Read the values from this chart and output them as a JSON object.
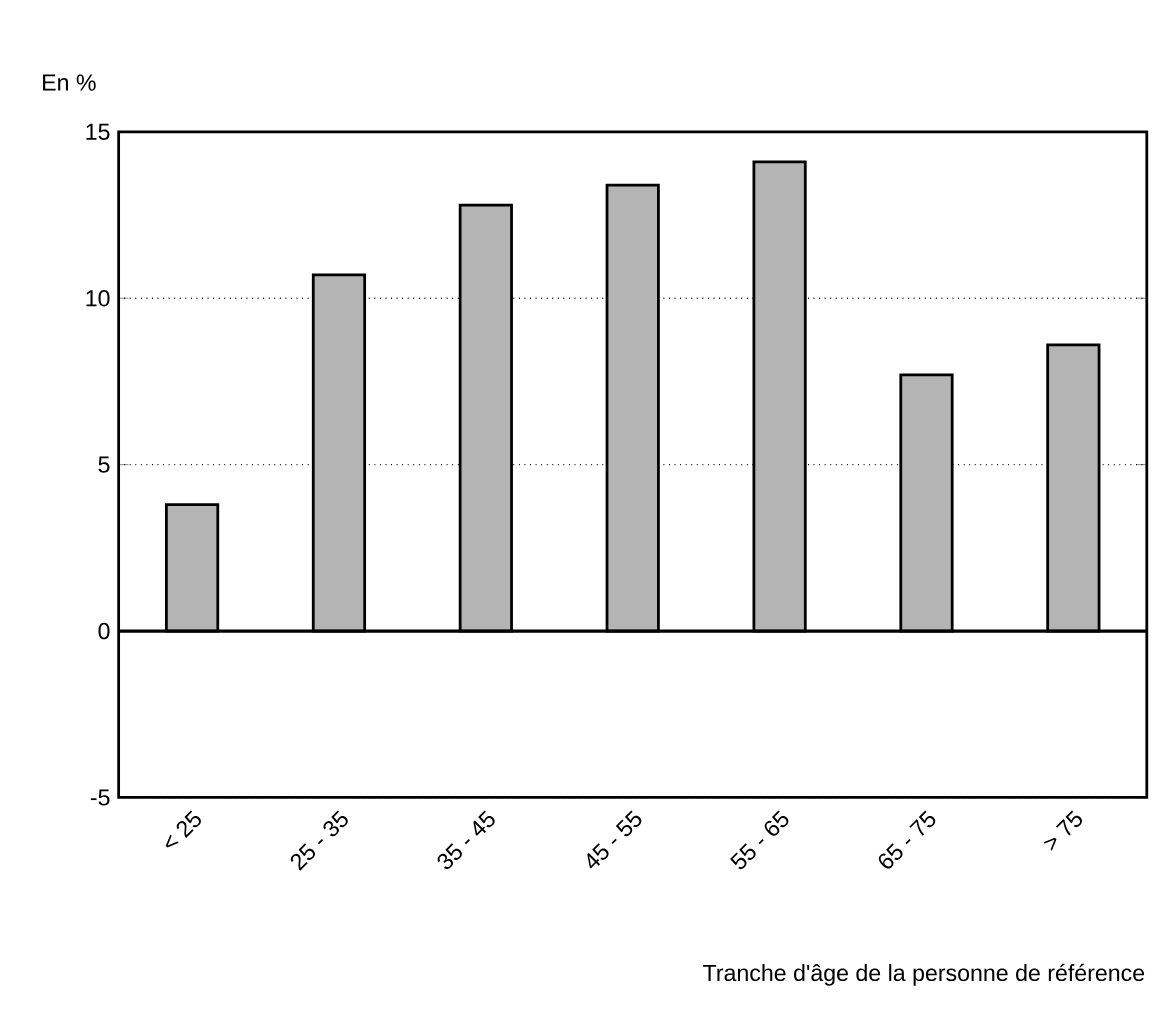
{
  "chart_data": {
    "type": "bar",
    "ylabel": "En %",
    "xlabel": "Tranche d'âge de la personne de référence",
    "categories": [
      "< 25",
      "25 - 35",
      "35 - 45",
      "45 - 55",
      "55 - 65",
      "65 - 75",
      "> 75"
    ],
    "values": [
      3.8,
      10.7,
      12.8,
      13.4,
      14.1,
      7.7,
      8.6
    ],
    "color": "#b4b4b4",
    "ylim": [
      -5,
      15
    ],
    "yticks": [
      -5,
      0,
      5,
      10,
      15
    ],
    "grid": "y",
    "line_style": "dotted",
    "ref_lines": [
      {
        "axis": "y",
        "value": 0
      }
    ]
  }
}
